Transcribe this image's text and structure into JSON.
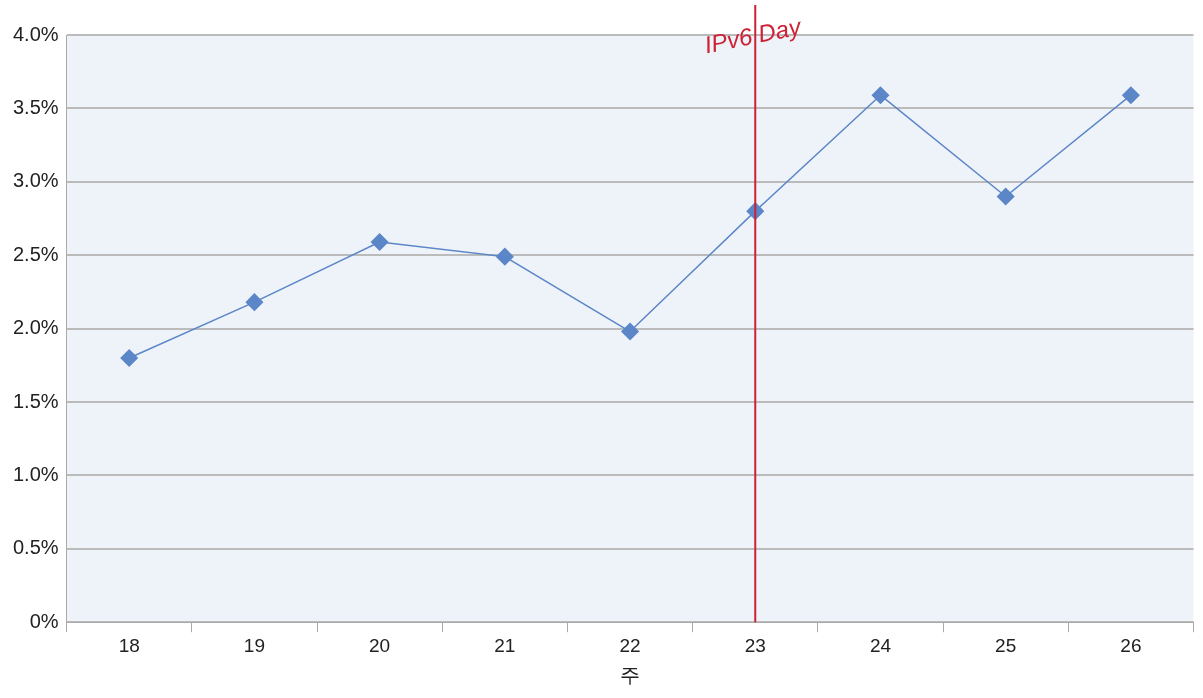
{
  "chart_data": {
    "type": "line",
    "xlabel": "주",
    "categories": [
      "18",
      "19",
      "20",
      "21",
      "22",
      "23",
      "24",
      "25",
      "26"
    ],
    "series": [
      {
        "color": "#5b86c8",
        "values": [
          1.8,
          2.18,
          2.59,
          2.49,
          1.98,
          2.8,
          3.59,
          2.9,
          3.59
        ]
      }
    ],
    "ylim": [
      0,
      4
    ],
    "yticks": [
      {
        "value": 0,
        "label": "0%"
      },
      {
        "value": 0.5,
        "label": "0.5%"
      },
      {
        "value": 1,
        "label": "1.0%"
      },
      {
        "value": 1.5,
        "label": "1.5%"
      },
      {
        "value": 2,
        "label": "2.0%"
      },
      {
        "value": 2.5,
        "label": "2.5%"
      },
      {
        "value": 3,
        "label": "3.0%"
      },
      {
        "value": 3.5,
        "label": "3.5%"
      },
      {
        "value": 4,
        "label": "4.0%"
      }
    ],
    "ref_lines": [
      {
        "axis": "x",
        "value": "23",
        "label": "IPv6 Day",
        "color": "#cc2233"
      }
    ],
    "grid": "y",
    "legend": false,
    "marker": "diamond",
    "line_style": "solid"
  }
}
